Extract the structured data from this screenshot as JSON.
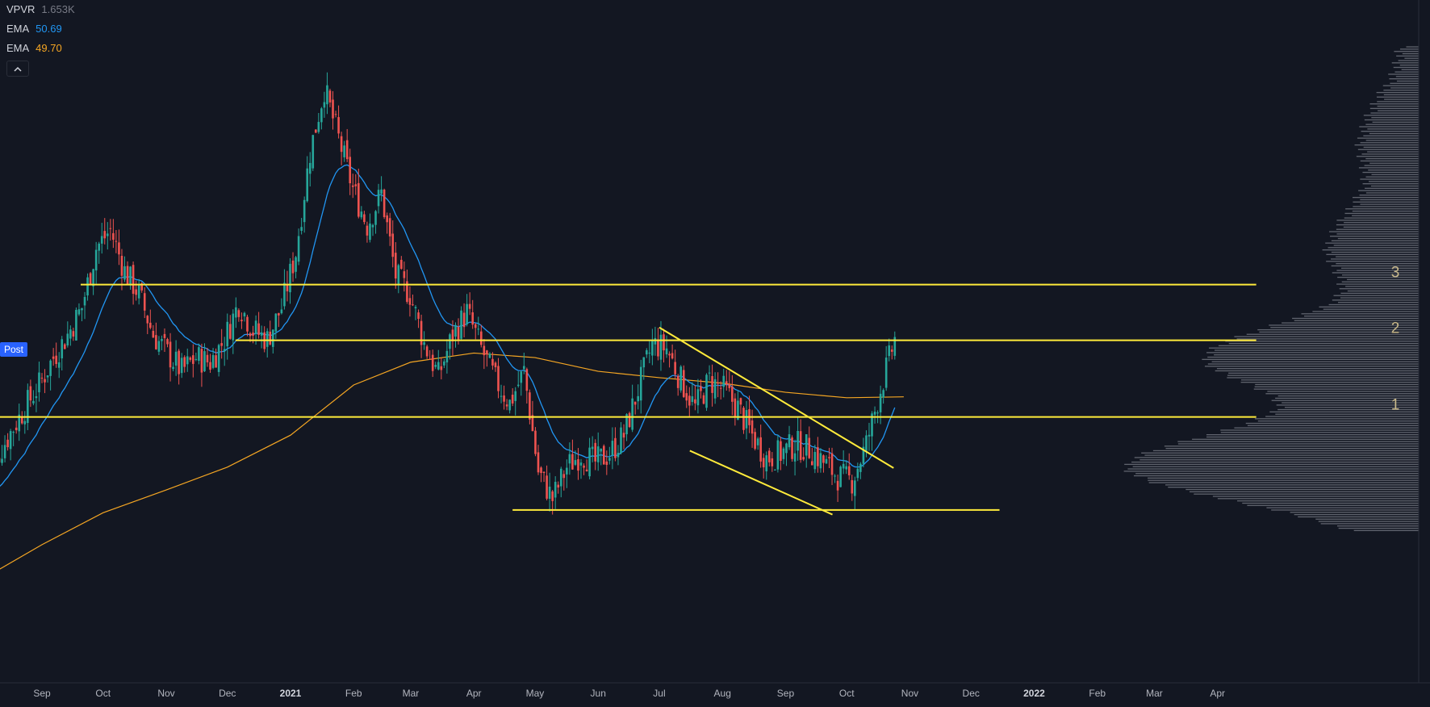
{
  "legend": {
    "vpvr_name": "VPVR",
    "vpvr_value": "1.653K",
    "ema_fast_name": "EMA",
    "ema_fast_value": "50.69",
    "ema_slow_name": "EMA",
    "ema_slow_value": "49.70",
    "collapse_icon": "chevron-up-icon"
  },
  "post_badge": "Post",
  "colors": {
    "background": "#131722",
    "candle_up": "#26a69a",
    "candle_down": "#ef5350",
    "ema_fast": "#2196f3",
    "ema_slow": "#f5a623",
    "trendline": "#ffeb3b",
    "volume_profile": "#9598a1",
    "level_label": "#c8b88a"
  },
  "chart_data": {
    "type": "candlestick",
    "x_tick_labels": [
      "Sep",
      "Oct",
      "Nov",
      "Dec",
      "2021",
      "Feb",
      "Mar",
      "Apr",
      "May",
      "Jun",
      "Jul",
      "Aug",
      "Sep",
      "Oct",
      "Nov",
      "Dec",
      "2022",
      "Feb",
      "Mar",
      "Apr"
    ],
    "year_ticks": [
      "2021",
      "2022"
    ],
    "y_range": [
      25,
      90
    ],
    "ema_fast_last": 50.69,
    "ema_slow_last": 49.7,
    "level_labels": [
      {
        "label": "3",
        "price": 62.0
      },
      {
        "label": "2",
        "price": 55.9
      },
      {
        "label": "1",
        "price": 47.5
      }
    ],
    "horizontal_levels": [
      {
        "price": 62.0,
        "from": "2020-09-20",
        "to": "2022-04-20"
      },
      {
        "price": 55.9,
        "from": "2020-12-05",
        "to": "2022-04-20"
      },
      {
        "price": 47.5,
        "from": "2020-08-05",
        "to": "2022-04-20"
      },
      {
        "price": 37.3,
        "from": "2021-04-20",
        "to": "2021-12-15"
      }
    ],
    "trend_lines": [
      {
        "from": [
          "2021-07-01",
          57.3
        ],
        "to": [
          "2021-10-24",
          41.9
        ]
      },
      {
        "from": [
          "2021-07-16",
          43.8
        ],
        "to": [
          "2021-09-24",
          36.8
        ]
      }
    ],
    "closes": [
      [
        "2020-08-03",
        41.5
      ],
      [
        "2020-08-10",
        43.0
      ],
      [
        "2020-08-17",
        45.8
      ],
      [
        "2020-08-24",
        48.5
      ],
      [
        "2020-08-31",
        51.0
      ],
      [
        "2020-09-07",
        54.0
      ],
      [
        "2020-09-14",
        56.5
      ],
      [
        "2020-09-21",
        59.5
      ],
      [
        "2020-09-28",
        66.0
      ],
      [
        "2020-10-05",
        68.0
      ],
      [
        "2020-10-12",
        63.5
      ],
      [
        "2020-10-19",
        61.0
      ],
      [
        "2020-10-26",
        56.5
      ],
      [
        "2020-11-02",
        54.5
      ],
      [
        "2020-11-09",
        52.5
      ],
      [
        "2020-11-16",
        54.0
      ],
      [
        "2020-11-23",
        53.5
      ],
      [
        "2020-11-30",
        56.0
      ],
      [
        "2020-12-07",
        60.0
      ],
      [
        "2020-12-14",
        57.0
      ],
      [
        "2020-12-21",
        56.0
      ],
      [
        "2020-12-28",
        59.5
      ],
      [
        "2021-01-04",
        65.5
      ],
      [
        "2021-01-11",
        76.5
      ],
      [
        "2021-01-18",
        83.5
      ],
      [
        "2021-01-25",
        78.0
      ],
      [
        "2021-02-01",
        72.5
      ],
      [
        "2021-02-08",
        68.5
      ],
      [
        "2021-02-15",
        72.0
      ],
      [
        "2021-02-22",
        63.0
      ],
      [
        "2021-03-01",
        61.0
      ],
      [
        "2021-03-08",
        55.5
      ],
      [
        "2021-03-15",
        52.0
      ],
      [
        "2021-03-22",
        56.5
      ],
      [
        "2021-03-29",
        59.0
      ],
      [
        "2021-04-05",
        55.0
      ],
      [
        "2021-04-12",
        51.5
      ],
      [
        "2021-04-19",
        49.0
      ],
      [
        "2021-04-26",
        52.5
      ],
      [
        "2021-05-03",
        41.5
      ],
      [
        "2021-05-10",
        38.5
      ],
      [
        "2021-05-17",
        42.0
      ],
      [
        "2021-05-24",
        43.5
      ],
      [
        "2021-05-31",
        42.5
      ],
      [
        "2021-06-07",
        43.5
      ],
      [
        "2021-06-14",
        45.5
      ],
      [
        "2021-06-21",
        50.5
      ],
      [
        "2021-06-28",
        55.5
      ],
      [
        "2021-07-05",
        55.0
      ],
      [
        "2021-07-12",
        51.5
      ],
      [
        "2021-07-19",
        48.5
      ],
      [
        "2021-07-26",
        51.5
      ],
      [
        "2021-08-02",
        50.5
      ],
      [
        "2021-08-09",
        48.5
      ],
      [
        "2021-08-16",
        45.5
      ],
      [
        "2021-08-23",
        43.0
      ],
      [
        "2021-08-30",
        43.5
      ],
      [
        "2021-09-06",
        44.5
      ],
      [
        "2021-09-13",
        44.0
      ],
      [
        "2021-09-20",
        42.5
      ],
      [
        "2021-09-27",
        41.0
      ],
      [
        "2021-10-04",
        40.5
      ],
      [
        "2021-10-11",
        44.5
      ],
      [
        "2021-10-18",
        50.5
      ],
      [
        "2021-10-25",
        56.0
      ]
    ],
    "ema_slow_points": [
      [
        "2020-08-01",
        29.5
      ],
      [
        "2020-09-01",
        33.5
      ],
      [
        "2020-10-01",
        37.0
      ],
      [
        "2020-11-01",
        39.5
      ],
      [
        "2020-12-01",
        42.0
      ],
      [
        "2021-01-01",
        45.5
      ],
      [
        "2021-02-01",
        51.0
      ],
      [
        "2021-03-01",
        53.5
      ],
      [
        "2021-04-01",
        54.5
      ],
      [
        "2021-05-01",
        54.0
      ],
      [
        "2021-06-01",
        52.5
      ],
      [
        "2021-07-01",
        51.8
      ],
      [
        "2021-08-01",
        51.2
      ],
      [
        "2021-09-01",
        50.2
      ],
      [
        "2021-10-01",
        49.6
      ],
      [
        "2021-10-29",
        49.7
      ]
    ]
  }
}
